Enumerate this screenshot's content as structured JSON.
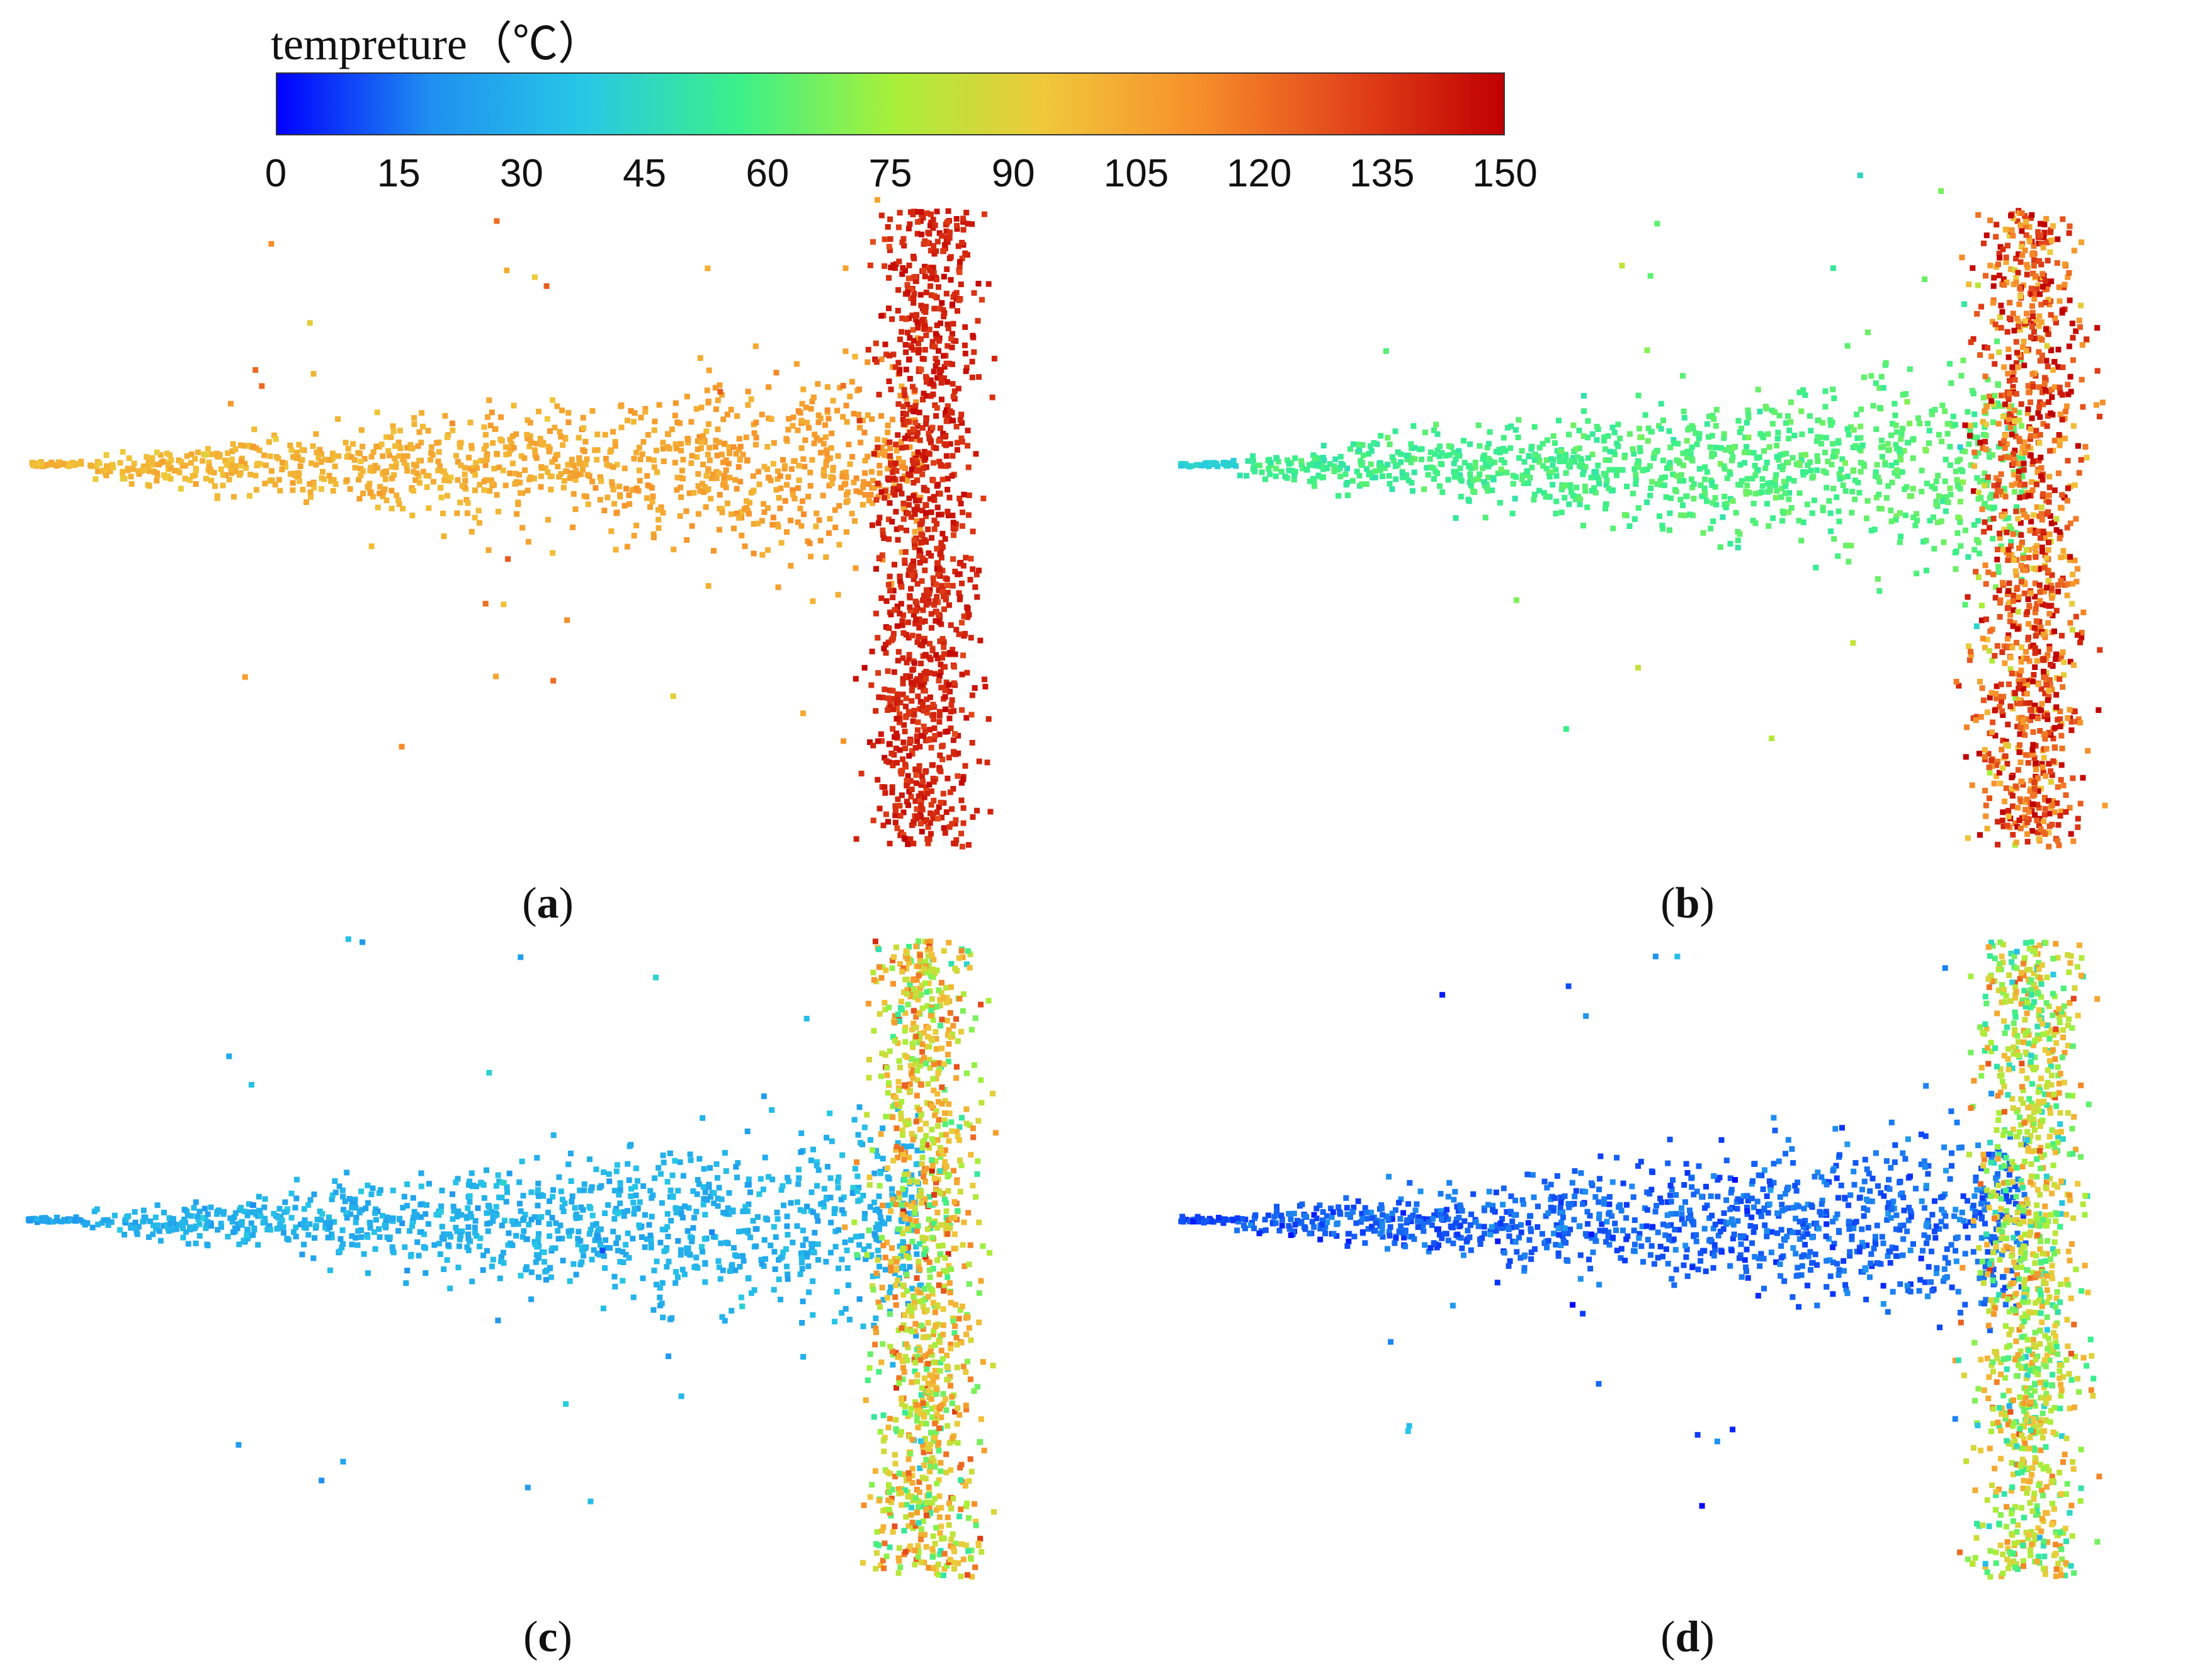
{
  "colorbar": {
    "title": "tempreture（℃）",
    "min": 0,
    "max": 150,
    "ticks": [
      "0",
      "15",
      "30",
      "45",
      "60",
      "75",
      "90",
      "105",
      "120",
      "135",
      "150"
    ],
    "colors": [
      "#0000ff",
      "#1f8ff0",
      "#27c8e6",
      "#3af08a",
      "#a6f03a",
      "#f0c83a",
      "#f78f2a",
      "#e2451a",
      "#c00000"
    ]
  },
  "chart_data": [
    {
      "type": "scatter",
      "panel": "a",
      "label_open": "(",
      "label_letter": "a",
      "label_close": ")",
      "description_values": {
        "injector_temp": 100,
        "near_temp": 98,
        "mid_temp": 108,
        "wall_temp": 140
      }
    },
    {
      "type": "scatter",
      "panel": "b",
      "label_open": "(",
      "label_letter": "b",
      "label_close": ")",
      "description_values": {
        "injector_temp": 40,
        "near_temp": 55,
        "mid_temp": 62,
        "wall_temp": 125
      }
    },
    {
      "type": "scatter",
      "panel": "c",
      "label_open": "(",
      "label_letter": "c",
      "label_close": ")",
      "description_values": {
        "injector_temp": 25,
        "near_temp": 30,
        "mid_temp": 30,
        "wall_temp": 90
      }
    },
    {
      "type": "scatter",
      "panel": "d",
      "label_open": "(",
      "label_letter": "d",
      "label_close": ")",
      "description_values": {
        "injector_temp": 10,
        "near_temp": 12,
        "mid_temp": 14,
        "wall_temp": 80
      }
    }
  ]
}
